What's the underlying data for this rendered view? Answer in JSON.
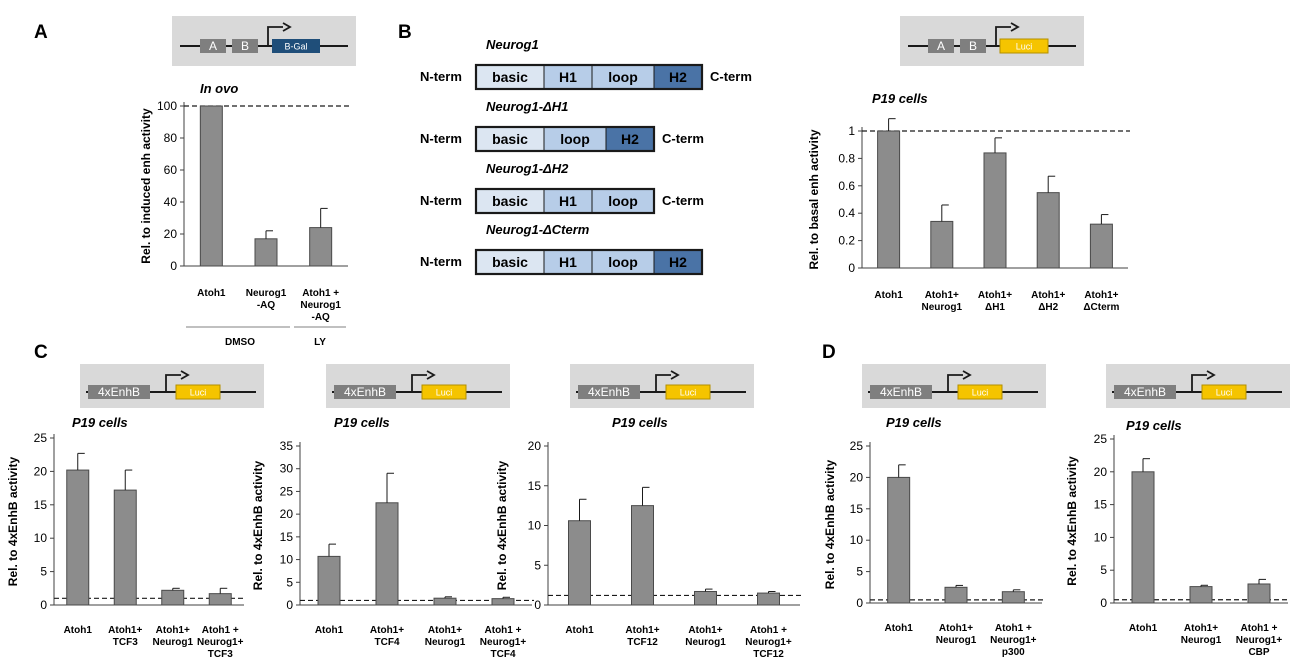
{
  "panels": {
    "A": "A",
    "B": "B",
    "C": "C",
    "D": "D"
  },
  "reporters": {
    "bgal": {
      "boxes": [
        "A",
        "B"
      ],
      "gene": "B-Gal",
      "gene_color": "#1f4e79"
    },
    "luci_ab": {
      "boxes": [
        "A",
        "B"
      ],
      "gene": "Luci",
      "gene_color": "#f5c400"
    },
    "enhb": {
      "box": "4xEnhB",
      "gene": "Luci",
      "gene_color": "#f5c400"
    }
  },
  "constructs": [
    {
      "name": "Neurog1",
      "domains": [
        "basic",
        "H1",
        "loop",
        "H2"
      ],
      "nterm": "N-term",
      "cterm": "C-term"
    },
    {
      "name": "Neurog1-ΔH1",
      "domains": [
        "basic",
        "loop",
        "H2"
      ],
      "nterm": "N-term",
      "cterm": "C-term"
    },
    {
      "name": "Neurog1-ΔH2",
      "domains": [
        "basic",
        "H1",
        "loop"
      ],
      "nterm": "N-term",
      "cterm": "C-term"
    },
    {
      "name": "Neurog1-ΔCterm",
      "domains": [
        "basic",
        "H1",
        "loop",
        "H2"
      ],
      "nterm": "N-term",
      "cterm": ""
    }
  ],
  "domain_colors": {
    "basic": "#dce6f2",
    "H1": "#b7cde8",
    "loop": "#b7cde8",
    "H2": "#4a73a6"
  },
  "group_labels": {
    "dmso": "DMSO",
    "ly": "LY"
  },
  "colors": {
    "bar": "#8c8c8c",
    "bar_edge": "#4a4a4a",
    "reporter_bg": "#d9d9d9"
  },
  "chart_data": [
    {
      "id": "A",
      "type": "bar",
      "title": "In ovo",
      "ylabel": "Rel. to induced enh activity",
      "ylim": [
        0,
        100
      ],
      "yticks": [
        "0",
        "20",
        "40",
        "60",
        "80",
        "100"
      ],
      "ytick_values": [
        0,
        20,
        40,
        60,
        80,
        100
      ],
      "categories": [
        [
          "Atoh1"
        ],
        [
          "Neurog1",
          "-AQ"
        ],
        [
          "Atoh1 +",
          "Neurog1",
          "-AQ"
        ]
      ],
      "values": [
        100,
        17,
        24
      ],
      "errors": [
        0,
        5,
        12
      ],
      "reference_line": 100
    },
    {
      "id": "B",
      "type": "bar",
      "title": "P19 cells",
      "ylabel": "Rel. to basal enh activity",
      "ylim": [
        0,
        1
      ],
      "yticks": [
        "0",
        "0.2",
        "0.4",
        "0.6",
        "0.8",
        "1"
      ],
      "ytick_values": [
        0,
        0.2,
        0.4,
        0.6,
        0.8,
        1
      ],
      "categories": [
        [
          "Atoh1"
        ],
        [
          "Atoh1+",
          "Neurog1"
        ],
        [
          "Atoh1+",
          "ΔH1"
        ],
        [
          "Atoh1+",
          "ΔH2"
        ],
        [
          "Atoh1+",
          "ΔCterm"
        ]
      ],
      "values": [
        1.0,
        0.34,
        0.84,
        0.55,
        0.32
      ],
      "errors": [
        0.09,
        0.12,
        0.11,
        0.12,
        0.07
      ],
      "reference_line": 1
    },
    {
      "id": "C1",
      "type": "bar",
      "title": "P19 cells",
      "ylabel": "Rel. to 4xEnhB activity",
      "ylim": [
        0,
        25
      ],
      "yticks": [
        "0",
        "5",
        "10",
        "15",
        "20",
        "25"
      ],
      "ytick_values": [
        0,
        5,
        10,
        15,
        20,
        25
      ],
      "categories": [
        [
          "Atoh1"
        ],
        [
          "Atoh1+",
          "TCF3"
        ],
        [
          "Atoh1+",
          "Neurog1"
        ],
        [
          "Atoh1 +",
          "Neurog1+",
          "TCF3"
        ]
      ],
      "values": [
        20.2,
        17.2,
        2.2,
        1.7
      ],
      "errors": [
        2.5,
        3.0,
        0.3,
        0.8
      ],
      "reference_line": 1
    },
    {
      "id": "C2",
      "type": "bar",
      "title": "P19 cells",
      "ylabel": "Rel. to 4xEnhB activity",
      "ylim": [
        0,
        35
      ],
      "yticks": [
        "0",
        "5",
        "10",
        "15",
        "20",
        "25",
        "30",
        "35"
      ],
      "ytick_values": [
        0,
        5,
        10,
        15,
        20,
        25,
        30,
        35
      ],
      "categories": [
        [
          "Atoh1"
        ],
        [
          "Atoh1+",
          "TCF4"
        ],
        [
          "Atoh1+",
          "Neurog1"
        ],
        [
          "Atoh1 +",
          "Neurog1+",
          "TCF4"
        ]
      ],
      "values": [
        10.7,
        22.5,
        1.5,
        1.4
      ],
      "errors": [
        2.7,
        6.5,
        0.3,
        0.3
      ],
      "reference_line": 1
    },
    {
      "id": "C3",
      "type": "bar",
      "title": "P19 cells",
      "ylabel": "Rel. to 4xEnhB activity",
      "ylim": [
        0,
        20
      ],
      "yticks": [
        "0",
        "5",
        "10",
        "15",
        "20"
      ],
      "ytick_values": [
        0,
        5,
        10,
        15,
        20
      ],
      "categories": [
        [
          "Atoh1"
        ],
        [
          "Atoh1+",
          "TCF12"
        ],
        [
          "Atoh1+",
          "Neurog1"
        ],
        [
          "Atoh1 +",
          "Neurog1+",
          "TCF12"
        ]
      ],
      "values": [
        10.6,
        12.5,
        1.7,
        1.5
      ],
      "errors": [
        2.7,
        2.3,
        0.3,
        0.2
      ],
      "reference_line": 1.2
    },
    {
      "id": "D1",
      "type": "bar",
      "title": "P19 cells",
      "ylabel": "Rel. to 4xEnhB activity",
      "ylim": [
        0,
        25
      ],
      "yticks": [
        "0",
        "5",
        "10",
        "15",
        "20",
        "25"
      ],
      "ytick_values": [
        0,
        5,
        10,
        15,
        20,
        25
      ],
      "categories": [
        [
          "Atoh1"
        ],
        [
          "Atoh1+",
          "Neurog1"
        ],
        [
          "Atoh1 +",
          "Neurog1+",
          "p300"
        ]
      ],
      "values": [
        20.0,
        2.5,
        1.8
      ],
      "errors": [
        2.0,
        0.3,
        0.3
      ],
      "reference_line": 0.5
    },
    {
      "id": "D2",
      "type": "bar",
      "title": "P19 cells",
      "ylabel": "Rel. to 4xEnhB activity",
      "ylim": [
        0,
        25
      ],
      "yticks": [
        "0",
        "5",
        "10",
        "15",
        "20",
        "25"
      ],
      "ytick_values": [
        0,
        5,
        10,
        15,
        20,
        25
      ],
      "categories": [
        [
          "Atoh1"
        ],
        [
          "Atoh1+",
          "Neurog1"
        ],
        [
          "Atoh1 +",
          "Neurog1+",
          "CBP"
        ]
      ],
      "values": [
        20.0,
        2.5,
        2.9
      ],
      "errors": [
        2.0,
        0.2,
        0.7
      ],
      "reference_line": 0.5
    }
  ]
}
